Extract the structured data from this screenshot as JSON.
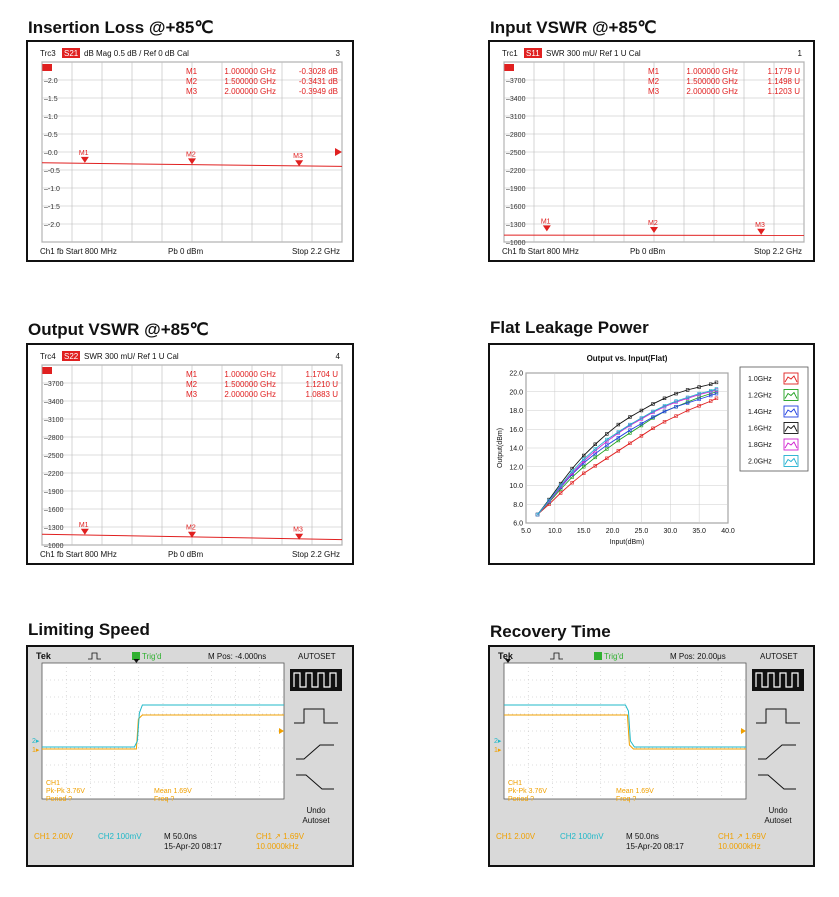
{
  "panels": {
    "insertion_loss_title": "Insertion Loss @+85℃",
    "input_vswr_title": "Input VSWR @+85℃",
    "output_vswr_title": "Output VSWR @+85℃",
    "flat_leakage_title": "Flat Leakage Power",
    "limiting_speed_title": "Limiting Speed",
    "recovery_time_title": "Recovery Time"
  },
  "chart_data": [
    {
      "type": "line",
      "instrument": "vna",
      "header": {
        "trc": "Trc3",
        "param": "S21",
        "format": "dB Mag  0.5 dB /  Ref 0 dB    Cal",
        "num": "3"
      },
      "ytick_labels": [
        "2.0",
        "1.5",
        "1.0",
        "0.5",
        "0.0",
        "-0.5",
        "-1.0",
        "-1.5",
        "-2.0"
      ],
      "ylim": [
        -2.5,
        2.5
      ],
      "x": [
        0.8,
        2.2
      ],
      "trace": [
        -0.3,
        -0.4
      ],
      "markers": [
        {
          "label": "M1",
          "freq": "1.000000  GHz",
          "value": "-0.3028  dB",
          "x": 1.0,
          "y": -0.3028
        },
        {
          "label": "M2",
          "freq": "1.500000  GHz",
          "value": "-0.3431  dB",
          "x": 1.5,
          "y": -0.3431
        },
        {
          "label": "M3",
          "freq": "2.000000  GHz",
          "value": "-0.3949  dB",
          "x": 2.0,
          "y": -0.3949
        }
      ],
      "footer": {
        "start": "Ch1  fb  Start  800 MHz",
        "pb": "Pb   0 dBm",
        "stop": "Stop  2.2 GHz"
      }
    },
    {
      "type": "line",
      "instrument": "vna",
      "header": {
        "trc": "Trc1",
        "param": "S11",
        "format": "SWR  300 mU/  Ref 1 U     Cal",
        "num": "1"
      },
      "ytick_labels": [
        "3700",
        "3400",
        "3100",
        "2800",
        "2500",
        "2200",
        "1900",
        "1600",
        "1300",
        "1000"
      ],
      "ylim": [
        1000,
        4000
      ],
      "x": [
        0.8,
        2.2
      ],
      "trace": [
        1.115,
        1.11
      ],
      "markers": [
        {
          "label": "M1",
          "freq": "1.000000  GHz",
          "value": "1.1779  U",
          "x": 1.0,
          "y": 1.1779
        },
        {
          "label": "M2",
          "freq": "1.500000  GHz",
          "value": "1.1498  U",
          "x": 1.5,
          "y": 1.1498
        },
        {
          "label": "M3",
          "freq": "2.000000  GHz",
          "value": "1.1203  U",
          "x": 2.0,
          "y": 1.1203
        }
      ],
      "footer": {
        "start": "Ch1  fb  Start  800 MHz",
        "pb": "Pb   0 dBm",
        "stop": "Stop  2.2 GHz"
      }
    },
    {
      "type": "line",
      "instrument": "vna",
      "header": {
        "trc": "Trc4",
        "param": "S22",
        "format": "SWR  300 mU/  Ref 1 U     Cal",
        "num": "4"
      },
      "ytick_labels": [
        "3700",
        "3400",
        "3100",
        "2800",
        "2500",
        "2200",
        "1900",
        "1600",
        "1300",
        "1000"
      ],
      "ylim": [
        1000,
        4000
      ],
      "x": [
        0.8,
        2.2
      ],
      "trace": [
        1.18,
        1.09
      ],
      "markers": [
        {
          "label": "M1",
          "freq": "1.000000  GHz",
          "value": "1.1704  U",
          "x": 1.0,
          "y": 1.1704
        },
        {
          "label": "M2",
          "freq": "1.500000  GHz",
          "value": "1.1210  U",
          "x": 1.5,
          "y": 1.121
        },
        {
          "label": "M3",
          "freq": "2.000000  GHz",
          "value": "1.0883  U",
          "x": 2.0,
          "y": 1.0883
        }
      ],
      "footer": {
        "start": "Ch1  fb  Start  800 MHz",
        "pb": "Pb   0 dBm",
        "stop": "Stop  2.2 GHz"
      }
    },
    {
      "type": "line",
      "title": "Output vs. Input(Flat)",
      "xlabel": "Input(dBm)",
      "ylabel": "Output(dBm)",
      "xlim": [
        5,
        40
      ],
      "ylim": [
        6,
        22
      ],
      "xticks": [
        "5.0",
        "10.0",
        "15.0",
        "20.0",
        "25.0",
        "30.0",
        "35.0",
        "40.0"
      ],
      "yticks": [
        "6.0",
        "8.0",
        "10.0",
        "12.0",
        "14.0",
        "16.0",
        "18.0",
        "20.0",
        "22.0"
      ],
      "grid": true,
      "legend": "right",
      "x": [
        7,
        9,
        11,
        13,
        15,
        17,
        19,
        21,
        23,
        25,
        27,
        29,
        31,
        33,
        35,
        37,
        38
      ],
      "series": [
        {
          "name": "1.0GHz",
          "color": "#e02020",
          "values": [
            6.9,
            8.0,
            9.2,
            10.3,
            11.3,
            12.1,
            12.9,
            13.7,
            14.5,
            15.3,
            16.1,
            16.8,
            17.4,
            18.0,
            18.5,
            19.0,
            19.3
          ]
        },
        {
          "name": "1.2GHz",
          "color": "#20a020",
          "values": [
            6.9,
            8.2,
            9.6,
            10.9,
            12.0,
            13.0,
            13.9,
            14.8,
            15.6,
            16.4,
            17.2,
            17.9,
            18.4,
            18.9,
            19.4,
            19.8,
            20.0
          ]
        },
        {
          "name": "1.4GHz",
          "color": "#2040e0",
          "values": [
            6.9,
            8.3,
            9.8,
            11.2,
            12.4,
            13.4,
            14.3,
            15.1,
            15.9,
            16.6,
            17.3,
            17.9,
            18.4,
            18.8,
            19.2,
            19.6,
            19.8
          ]
        },
        {
          "name": "1.6GHz",
          "color": "#111111",
          "values": [
            6.9,
            8.5,
            10.2,
            11.8,
            13.2,
            14.4,
            15.5,
            16.5,
            17.3,
            18.0,
            18.7,
            19.3,
            19.8,
            20.2,
            20.5,
            20.8,
            21.0
          ]
        },
        {
          "name": "1.8GHz",
          "color": "#d020d0",
          "values": [
            6.9,
            8.3,
            9.9,
            11.3,
            12.6,
            13.7,
            14.7,
            15.6,
            16.4,
            17.1,
            17.8,
            18.4,
            18.9,
            19.3,
            19.7,
            20.0,
            20.2
          ]
        },
        {
          "name": "2.0GHz",
          "color": "#20b0d0",
          "values": [
            6.9,
            8.4,
            10.0,
            11.5,
            12.8,
            13.9,
            14.9,
            15.7,
            16.5,
            17.2,
            17.9,
            18.5,
            19.0,
            19.4,
            19.8,
            20.1,
            20.3
          ]
        }
      ]
    },
    {
      "type": "line",
      "instrument": "scope",
      "brand": "Tek",
      "trig": "Trig'd",
      "mpos": "M Pos: -4.000ns",
      "autoset": "AUTOSET",
      "step_position": 0.39,
      "ch1_labels": [
        "CH1",
        "Pk-Pk 3.76V",
        "Period ?"
      ],
      "mean_labels": [
        "Mean 1.69V",
        "Freq ?"
      ],
      "undo": [
        "Undo",
        "Autoset"
      ],
      "status": {
        "ch1": "CH1  2.00V",
        "ch2": "CH2  100mV",
        "m": "M 50.0ns",
        "date": "15-Apr-20 08:17",
        "trig": "CH1  ↗  1.69V",
        "freq": "10.0000kHz"
      }
    },
    {
      "type": "line",
      "instrument": "scope",
      "brand": "Tek",
      "trig": "Trig'd",
      "mpos": "M Pos: 20.00μs",
      "autoset": "AUTOSET",
      "step_position": 0.51,
      "ch1_labels": [
        "CH1",
        "Pk-Pk 3.76V",
        "Period ?"
      ],
      "mean_labels": [
        "Mean 1.69V",
        "Freq ?"
      ],
      "undo": [
        "Undo",
        "Autoset"
      ],
      "status": {
        "ch1": "CH1  2.00V",
        "ch2": "CH2  100mV",
        "m": "M 50.0ns",
        "date": "15-Apr-20 08:17",
        "trig": "CH1  ↗  1.69V",
        "freq": "10.0000kHz"
      }
    }
  ]
}
